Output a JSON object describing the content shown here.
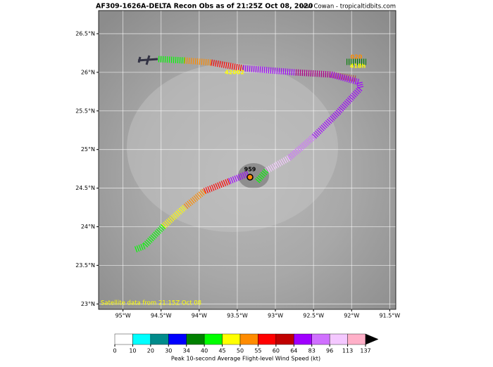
{
  "chart_data": {
    "type": "map",
    "title": "AF309-1626A-DELTA Recon Obs as of 21:25Z Oct 08, 2020",
    "credit": "Levi Cowan - tropicaltidbits.com",
    "xlim": [
      -95.32,
      -91.42
    ],
    "ylim": [
      22.93,
      26.8
    ],
    "xticks": [
      {
        "value": -95,
        "label": "95°W"
      },
      {
        "value": -94.5,
        "label": "94.5°W"
      },
      {
        "value": -94,
        "label": "94°W"
      },
      {
        "value": -93.5,
        "label": "93.5°W"
      },
      {
        "value": -93,
        "label": "93°W"
      },
      {
        "value": -92.5,
        "label": "92.5°W"
      },
      {
        "value": -92,
        "label": "92°W"
      },
      {
        "value": -91.5,
        "label": "91.5°W"
      }
    ],
    "yticks": [
      {
        "value": 23,
        "label": "23°N"
      },
      {
        "value": 23.5,
        "label": "23.5°N"
      },
      {
        "value": 24,
        "label": "24°N"
      },
      {
        "value": 24.5,
        "label": "24.5°N"
      },
      {
        "value": 25,
        "label": "25°N"
      },
      {
        "value": 25.5,
        "label": "25.5°N"
      },
      {
        "value": 26,
        "label": "26°N"
      },
      {
        "value": 26.5,
        "label": "26.5°N"
      }
    ],
    "grid": true,
    "annotations": {
      "pressure": "959",
      "dropsonde_1": "020",
      "dropsonde_2": "418h",
      "buoy": "42002",
      "satellite_note": "Satellite data from 21:15Z Oct 08"
    },
    "colorbar": {
      "label": "Peak 10-second Average Flight-level Wind Speed (kt)",
      "ticks": [
        0,
        10,
        20,
        30,
        34,
        40,
        45,
        50,
        55,
        60,
        64,
        83,
        96,
        113,
        137
      ],
      "colors": [
        "#ffffff",
        "#00ffff",
        "#008b8b",
        "#0000ff",
        "#008000",
        "#00ff00",
        "#ffff00",
        "#ff8c00",
        "#ff0000",
        "#c00000",
        "#a000ff",
        "#d070ff",
        "#f4c8ff",
        "#ffb0c8",
        "#ff8080"
      ]
    }
  }
}
